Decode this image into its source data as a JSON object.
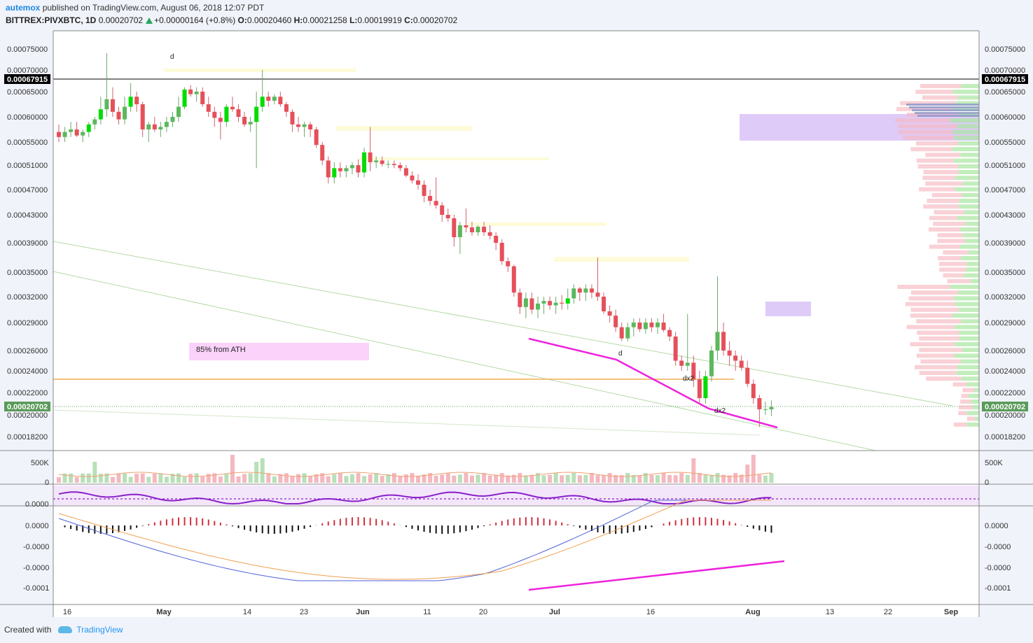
{
  "header": {
    "author": "autemox",
    "published_text": "published on TradingView.com, August 06, 2018 12:07 PDT",
    "symbol": "BITTREX:PIVXBTC, 1D",
    "last": "0.00020702",
    "change": "+0.00000164 (+0.8%)",
    "open_label": "O:",
    "open": "0.00020460",
    "high_label": "H:",
    "high": "0.00021258",
    "low_label": "L:",
    "low": "0.00019919",
    "close_label": "C:",
    "close": "0.00020702"
  },
  "footer": {
    "created_with": "Created with",
    "brand": "TradingView"
  },
  "colors": {
    "up": "#26a65b",
    "up_bright": "#00dd00",
    "down": "#e5505a",
    "pink_line": "#ee22dd",
    "orange_line": "#f0b050",
    "zone_purple": "#d9c2f7",
    "zone_pink": "#fad2fa",
    "zone_yellow": "#fdfbd8"
  },
  "chart_data": {
    "type": "candlestick",
    "price_axis_ticks": [
      "0.00075000",
      "0.00070000",
      "0.00065000",
      "0.00060000",
      "0.00055000",
      "0.00051000",
      "0.00047000",
      "0.00043000",
      "0.00039000",
      "0.00035000",
      "0.00032000",
      "0.00029000",
      "0.00026000",
      "0.00024000",
      "0.00022000",
      "0.00020000",
      "0.00018200"
    ],
    "current_price_label": "0.00020702",
    "black_line_label": "0.00067915",
    "x_ticks": [
      "16",
      "May",
      "14",
      "23",
      "Jun",
      "11",
      "20",
      "Jul",
      "16",
      "Aug",
      "13",
      "22",
      "Sep"
    ],
    "volume_axis": [
      "500K",
      "0"
    ],
    "rsi_axis": [
      "0.0000"
    ],
    "macd_axis": [
      "0.0000",
      "-0.0000",
      "-0.0000",
      "-0.0001"
    ],
    "annotations": [
      "d",
      "d",
      "dx2",
      "dx2",
      "85% from ATH"
    ],
    "candles_ohlc": [
      [
        0.00057,
        0.000585,
        0.00055,
        0.00056
      ],
      [
        0.00056,
        0.00058,
        0.00055,
        0.00057
      ],
      [
        0.00057,
        0.00059,
        0.00056,
        0.000575
      ],
      [
        0.000575,
        0.00059,
        0.00056,
        0.000563
      ],
      [
        0.000563,
        0.000575,
        0.00055,
        0.00057
      ],
      [
        0.00057,
        0.00059,
        0.00056,
        0.000585
      ],
      [
        0.000585,
        0.0006,
        0.000575,
        0.000595
      ],
      [
        0.000595,
        0.00064,
        0.000585,
        0.000615
      ],
      [
        0.000615,
        0.00074,
        0.0006,
        0.000635
      ],
      [
        0.000635,
        0.00066,
        0.0006,
        0.00061
      ],
      [
        0.00061,
        0.00062,
        0.000585,
        0.000595
      ],
      [
        0.000595,
        0.00064,
        0.000585,
        0.00062
      ],
      [
        0.00062,
        0.00067,
        0.00061,
        0.00064
      ],
      [
        0.00064,
        0.00065,
        0.00061,
        0.000625
      ],
      [
        0.000625,
        0.00063,
        0.00056,
        0.000575
      ],
      [
        0.000575,
        0.00059,
        0.00055,
        0.000585
      ],
      [
        0.000585,
        0.0006,
        0.00057,
        0.000575
      ],
      [
        0.000575,
        0.00059,
        0.00056,
        0.00058
      ],
      [
        0.00058,
        0.0006,
        0.00057,
        0.00059
      ],
      [
        0.00059,
        0.00061,
        0.00058,
        0.0006
      ],
      [
        0.0006,
        0.00064,
        0.00059,
        0.00062
      ],
      [
        0.00062,
        0.00066,
        0.000615,
        0.000655
      ],
      [
        0.000655,
        0.000665,
        0.00064,
        0.000645
      ],
      [
        0.000645,
        0.00066,
        0.00063,
        0.00065
      ],
      [
        0.00065,
        0.00066,
        0.00062,
        0.000625
      ],
      [
        0.000625,
        0.00064,
        0.0006,
        0.00061
      ],
      [
        0.00061,
        0.00062,
        0.00058,
        0.000598
      ],
      [
        0.000598,
        0.00061,
        0.000555,
        0.00059
      ],
      [
        0.00059,
        0.000625,
        0.00058,
        0.00062
      ],
      [
        0.00062,
        0.00064,
        0.00061,
        0.000615
      ],
      [
        0.000615,
        0.000625,
        0.00059,
        0.0006
      ],
      [
        0.0006,
        0.00061,
        0.00058,
        0.000585
      ],
      [
        0.000585,
        0.0006,
        0.00057,
        0.00059
      ],
      [
        0.00059,
        0.00065,
        0.000505,
        0.00062
      ],
      [
        0.00062,
        0.0007,
        0.00061,
        0.00064
      ],
      [
        0.00064,
        0.00065,
        0.00062,
        0.000632
      ],
      [
        0.000632,
        0.000645,
        0.000625,
        0.00064
      ],
      [
        0.00064,
        0.00065,
        0.00062,
        0.000625
      ],
      [
        0.000625,
        0.00063,
        0.0006,
        0.00061
      ],
      [
        0.00061,
        0.000615,
        0.00057,
        0.000585
      ],
      [
        0.000585,
        0.0006,
        0.00057,
        0.00058
      ],
      [
        0.00058,
        0.00059,
        0.00056,
        0.000585
      ],
      [
        0.000585,
        0.00059,
        0.00056,
        0.000575
      ],
      [
        0.000575,
        0.00058,
        0.00054,
        0.000545
      ],
      [
        0.000545,
        0.00055,
        0.00051,
        0.000518
      ],
      [
        0.000518,
        0.000525,
        0.00048,
        0.00049
      ],
      [
        0.00049,
        0.000515,
        0.00048,
        0.000505
      ],
      [
        0.000505,
        0.000515,
        0.00049,
        0.0005
      ],
      [
        0.0005,
        0.00051,
        0.00049,
        0.000505
      ],
      [
        0.000505,
        0.000515,
        0.000495,
        0.00051
      ],
      [
        0.00051,
        0.00052,
        0.00049,
        0.000498
      ],
      [
        0.000498,
        0.00054,
        0.00049,
        0.000532
      ],
      [
        0.000532,
        0.00058,
        0.0005,
        0.000515
      ],
      [
        0.000515,
        0.000525,
        0.000505,
        0.000518
      ],
      [
        0.000518,
        0.000525,
        0.000508,
        0.000512
      ],
      [
        0.000512,
        0.000518,
        0.000505,
        0.000512
      ],
      [
        0.000512,
        0.000518,
        0.000505,
        0.00051
      ],
      [
        0.00051,
        0.000515,
        0.0005,
        0.000505
      ],
      [
        0.000505,
        0.00051,
        0.00049,
        0.000493
      ],
      [
        0.000493,
        0.0005,
        0.00048,
        0.000485
      ],
      [
        0.000485,
        0.000495,
        0.00047,
        0.000478
      ],
      [
        0.000478,
        0.000485,
        0.00045,
        0.00046
      ],
      [
        0.00046,
        0.00047,
        0.000445,
        0.000452
      ],
      [
        0.000452,
        0.00049,
        0.00044,
        0.000445
      ],
      [
        0.000445,
        0.00045,
        0.00042,
        0.00043
      ],
      [
        0.00043,
        0.00044,
        0.00042,
        0.000425
      ],
      [
        0.000425,
        0.00043,
        0.000385,
        0.000398
      ],
      [
        0.000398,
        0.00042,
        0.000375,
        0.000415
      ],
      [
        0.000415,
        0.00044,
        0.000405,
        0.000412
      ],
      [
        0.000412,
        0.00042,
        0.0004,
        0.000405
      ],
      [
        0.000405,
        0.000415,
        0.0004,
        0.000413
      ],
      [
        0.000413,
        0.00042,
        0.0004,
        0.000405
      ],
      [
        0.000405,
        0.000415,
        0.000395,
        0.0004
      ],
      [
        0.0004,
        0.000405,
        0.00038,
        0.00039
      ],
      [
        0.00039,
        0.000395,
        0.00036,
        0.000365
      ],
      [
        0.000365,
        0.00037,
        0.00035,
        0.000358
      ],
      [
        0.000358,
        0.00036,
        0.00032,
        0.000325
      ],
      [
        0.000325,
        0.00033,
        0.0003,
        0.000308
      ],
      [
        0.000308,
        0.000325,
        0.000295,
        0.000318
      ],
      [
        0.000318,
        0.000325,
        0.0003,
        0.000305
      ],
      [
        0.000305,
        0.00032,
        0.000295,
        0.000312
      ],
      [
        0.000312,
        0.00032,
        0.0003,
        0.000315
      ],
      [
        0.000315,
        0.00032,
        0.000305,
        0.00031
      ],
      [
        0.00031,
        0.00032,
        0.0003,
        0.000313
      ],
      [
        0.000313,
        0.000322,
        0.000305,
        0.000312
      ],
      [
        0.000312,
        0.00033,
        0.000305,
        0.000318
      ],
      [
        0.000318,
        0.000335,
        0.000312,
        0.00033
      ],
      [
        0.00033,
        0.000332,
        0.000315,
        0.000325
      ],
      [
        0.000325,
        0.000335,
        0.000315,
        0.00033
      ],
      [
        0.00033,
        0.000335,
        0.000318,
        0.000325
      ],
      [
        0.000325,
        0.00037,
        0.000315,
        0.00032
      ],
      [
        0.00032,
        0.000325,
        0.0003,
        0.000303
      ],
      [
        0.000303,
        0.00031,
        0.00029,
        0.000298
      ],
      [
        0.000298,
        0.000305,
        0.00028,
        0.000285
      ],
      [
        0.000285,
        0.00029,
        0.00027,
        0.000273
      ],
      [
        0.000273,
        0.00029,
        0.00027,
        0.000285
      ],
      [
        0.000285,
        0.000295,
        0.000275,
        0.00029
      ],
      [
        0.00029,
        0.000295,
        0.00028,
        0.000283
      ],
      [
        0.000283,
        0.000295,
        0.000278,
        0.00029
      ],
      [
        0.00029,
        0.000295,
        0.00028,
        0.000285
      ],
      [
        0.000285,
        0.000295,
        0.000278,
        0.00029
      ],
      [
        0.00029,
        0.0003,
        0.00028,
        0.000282
      ],
      [
        0.000282,
        0.000285,
        0.00027,
        0.000275
      ],
      [
        0.000275,
        0.00028,
        0.000245,
        0.00025
      ],
      [
        0.00025,
        0.000255,
        0.00024,
        0.000245
      ],
      [
        0.000245,
        0.0003,
        0.00024,
        0.000248
      ],
      [
        0.000248,
        0.000255,
        0.000225,
        0.000232
      ],
      [
        0.000232,
        0.00024,
        0.00021,
        0.000215
      ],
      [
        0.000215,
        0.00024,
        0.00021,
        0.000235
      ],
      [
        0.000235,
        0.000265,
        0.00023,
        0.00026
      ],
      [
        0.00026,
        0.000345,
        0.00025,
        0.00028
      ],
      [
        0.00028,
        0.00029,
        0.000255,
        0.00026
      ],
      [
        0.00026,
        0.00027,
        0.000245,
        0.000255
      ],
      [
        0.000255,
        0.00026,
        0.00024,
        0.00025
      ],
      [
        0.00025,
        0.000255,
        0.00024,
        0.000243
      ],
      [
        0.000243,
        0.00025,
        0.000225,
        0.000228
      ],
      [
        0.000228,
        0.000232,
        0.00021,
        0.000215
      ],
      [
        0.000215,
        0.000218,
        0.00019,
        0.000205
      ],
      [
        0.000205,
        0.000212,
        0.0002,
        0.000205
      ],
      [
        0.000205,
        0.000213,
        0.000199,
        0.000207
      ]
    ]
  }
}
